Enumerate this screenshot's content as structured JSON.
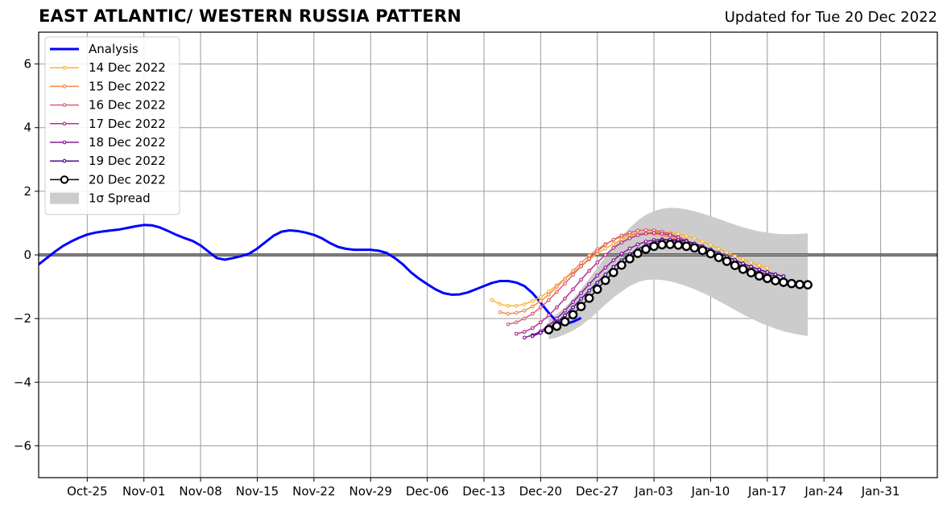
{
  "chart_data": {
    "type": "line",
    "title": "EAST ATLANTIC/ WESTERN RUSSIA PATTERN",
    "subtitle": "Updated for Tue 20 Dec 2022",
    "xlabel": "",
    "ylabel": "",
    "ylim": [
      -7,
      7
    ],
    "yticks": [
      -6,
      -4,
      -2,
      0,
      2,
      4,
      6
    ],
    "ytick_labels": [
      "−6",
      "−4",
      "−2",
      "0",
      "2",
      "4",
      "6"
    ],
    "xlim": [
      "2022-10-19",
      "2023-02-07"
    ],
    "xticks": [
      "2022-10-25",
      "2022-11-01",
      "2022-11-08",
      "2022-11-15",
      "2022-11-22",
      "2022-11-29",
      "2022-12-06",
      "2022-12-13",
      "2022-12-20",
      "2022-12-27",
      "2023-01-03",
      "2023-01-10",
      "2023-01-17",
      "2023-01-24",
      "2023-01-31"
    ],
    "xtick_labels": [
      "Oct-25",
      "Nov-01",
      "Nov-08",
      "Nov-15",
      "Nov-22",
      "Nov-29",
      "Dec-06",
      "Dec-13",
      "Dec-20",
      "Dec-27",
      "Jan-03",
      "Jan-10",
      "Jan-17",
      "Jan-24",
      "Jan-31"
    ],
    "grid": true,
    "legend_position": "top-left",
    "zero_line": true,
    "analysis": {
      "name": "Analysis",
      "color": "#0000ff",
      "start": "2022-10-19",
      "values": [
        -0.3,
        -0.1,
        0.1,
        0.28,
        0.42,
        0.54,
        0.64,
        0.7,
        0.74,
        0.77,
        0.8,
        0.85,
        0.9,
        0.94,
        0.93,
        0.86,
        0.75,
        0.63,
        0.53,
        0.44,
        0.3,
        0.1,
        -0.1,
        -0.15,
        -0.1,
        -0.04,
        0.04,
        0.2,
        0.4,
        0.6,
        0.73,
        0.77,
        0.75,
        0.7,
        0.63,
        0.52,
        0.37,
        0.25,
        0.19,
        0.16,
        0.16,
        0.16,
        0.13,
        0.06,
        -0.1,
        -0.3,
        -0.55,
        -0.75,
        -0.92,
        -1.08,
        -1.2,
        -1.25,
        -1.24,
        -1.18,
        -1.08,
        -0.98,
        -0.88,
        -0.82,
        -0.82,
        -0.87,
        -0.98,
        -1.2,
        -1.5,
        -1.82,
        -2.1,
        -2.18,
        -2.1,
        -1.98
      ]
    },
    "series": [
      {
        "name": "14 Dec 2022",
        "color": "#fcb532",
        "start": "2022-12-14",
        "values": [
          -1.42,
          -1.55,
          -1.6,
          -1.6,
          -1.55,
          -1.45,
          -1.32,
          -1.15,
          -0.95,
          -0.75,
          -0.55,
          -0.35,
          -0.15,
          0.05,
          0.2,
          0.35,
          0.48,
          0.58,
          0.65,
          0.7,
          0.72,
          0.72,
          0.7,
          0.66,
          0.6,
          0.52,
          0.42,
          0.32,
          0.2,
          0.08,
          -0.04,
          -0.14,
          -0.24,
          -0.33,
          -0.41
        ]
      },
      {
        "name": "15 Dec 2022",
        "color": "#f28b4c",
        "start": "2022-12-15",
        "values": [
          -1.8,
          -1.85,
          -1.82,
          -1.75,
          -1.62,
          -1.45,
          -1.25,
          -1.0,
          -0.75,
          -0.5,
          -0.25,
          -0.02,
          0.18,
          0.34,
          0.47,
          0.57,
          0.64,
          0.67,
          0.68,
          0.66,
          0.62,
          0.56,
          0.48,
          0.39,
          0.29,
          0.18,
          0.07,
          -0.04,
          -0.14,
          -0.24,
          -0.33,
          -0.42
        ]
      },
      {
        "name": "16 Dec 2022",
        "color": "#dd5e6f",
        "start": "2022-12-16",
        "values": [
          -2.18,
          -2.12,
          -2.0,
          -1.85,
          -1.65,
          -1.42,
          -1.16,
          -0.9,
          -0.62,
          -0.36,
          -0.12,
          0.12,
          0.32,
          0.48,
          0.61,
          0.7,
          0.76,
          0.78,
          0.77,
          0.73,
          0.66,
          0.57,
          0.46,
          0.34,
          0.21,
          0.08,
          -0.06,
          -0.18,
          -0.3,
          -0.4,
          -0.5,
          -0.58,
          -0.65
        ]
      },
      {
        "name": "17 Dec 2022",
        "color": "#b83289",
        "start": "2022-12-17",
        "values": [
          -2.48,
          -2.42,
          -2.3,
          -2.12,
          -1.9,
          -1.65,
          -1.37,
          -1.08,
          -0.78,
          -0.5,
          -0.24,
          0.0,
          0.22,
          0.39,
          0.52,
          0.62,
          0.67,
          0.69,
          0.67,
          0.62,
          0.54,
          0.44,
          0.32,
          0.19,
          0.06,
          -0.07,
          -0.2,
          -0.32,
          -0.43,
          -0.53,
          -0.62,
          -0.69
        ]
      },
      {
        "name": "18 Dec 2022",
        "color": "#8b1a99",
        "start": "2022-12-18",
        "values": [
          -2.6,
          -2.52,
          -2.4,
          -2.22,
          -2.0,
          -1.75,
          -1.48,
          -1.2,
          -0.92,
          -0.65,
          -0.4,
          -0.17,
          0.04,
          0.2,
          0.33,
          0.42,
          0.47,
          0.49,
          0.47,
          0.43,
          0.36,
          0.27,
          0.17,
          0.06,
          -0.05,
          -0.16,
          -0.27,
          -0.37,
          -0.46,
          -0.54,
          -0.61,
          -0.67
        ]
      },
      {
        "name": "19 Dec 2022",
        "color": "#4b0c8e",
        "start": "2022-12-19",
        "values": [
          -2.55,
          -2.45,
          -2.3,
          -2.12,
          -1.9,
          -1.65,
          -1.38,
          -1.12,
          -0.87,
          -0.62,
          -0.38,
          -0.17,
          0.02,
          0.18,
          0.31,
          0.4,
          0.46,
          0.48,
          0.47,
          0.43,
          0.36,
          0.27,
          0.17,
          0.06,
          -0.05,
          -0.16,
          -0.27,
          -0.37,
          -0.46,
          -0.54,
          -0.61,
          -0.67
        ]
      }
    ],
    "forecast": {
      "name": "20 Dec 2022",
      "color": "#000000",
      "marker_fill": "#ffffff",
      "start": "2022-12-21",
      "values": [
        -2.35,
        -2.24,
        -2.1,
        -1.88,
        -1.62,
        -1.36,
        -1.08,
        -0.8,
        -0.55,
        -0.32,
        -0.12,
        0.05,
        0.18,
        0.27,
        0.32,
        0.33,
        0.31,
        0.27,
        0.22,
        0.14,
        0.04,
        -0.08,
        -0.2,
        -0.33,
        -0.45,
        -0.56,
        -0.66,
        -0.74,
        -0.81,
        -0.86,
        -0.9,
        -0.93,
        -0.94
      ]
    },
    "spread": {
      "name": "1σ Spread",
      "color": "#cccccc",
      "start": "2022-12-21",
      "lower": [
        -2.65,
        -2.6,
        -2.5,
        -2.38,
        -2.22,
        -2.02,
        -1.8,
        -1.56,
        -1.34,
        -1.15,
        -0.98,
        -0.86,
        -0.79,
        -0.77,
        -0.79,
        -0.83,
        -0.9,
        -0.98,
        -1.08,
        -1.19,
        -1.31,
        -1.45,
        -1.59,
        -1.73,
        -1.87,
        -2.0,
        -2.12,
        -2.22,
        -2.32,
        -2.4,
        -2.46,
        -2.51,
        -2.55
      ],
      "upper": [
        -2.0,
        -1.86,
        -1.65,
        -1.38,
        -1.08,
        -0.75,
        -0.4,
        -0.05,
        0.28,
        0.58,
        0.85,
        1.08,
        1.26,
        1.38,
        1.45,
        1.48,
        1.47,
        1.43,
        1.37,
        1.3,
        1.22,
        1.13,
        1.04,
        0.95,
        0.87,
        0.8,
        0.74,
        0.7,
        0.67,
        0.65,
        0.65,
        0.66,
        0.68
      ]
    },
    "legend": [
      {
        "label": "Analysis",
        "kind": "thick",
        "color": "#0000ff"
      },
      {
        "label": "14 Dec 2022",
        "kind": "dot",
        "color": "#fcb532"
      },
      {
        "label": "15 Dec 2022",
        "kind": "dot",
        "color": "#f28b4c"
      },
      {
        "label": "16 Dec 2022",
        "kind": "dot",
        "color": "#dd5e6f"
      },
      {
        "label": "17 Dec 2022",
        "kind": "dot",
        "color": "#b83289"
      },
      {
        "label": "18 Dec 2022",
        "kind": "dot",
        "color": "#8b1a99"
      },
      {
        "label": "19 Dec 2022",
        "kind": "dot",
        "color": "#4b0c8e"
      },
      {
        "label": "20 Dec 2022",
        "kind": "circle",
        "color": "#000000"
      },
      {
        "label": "1σ Spread",
        "kind": "patch",
        "color": "#cccccc"
      }
    ]
  }
}
